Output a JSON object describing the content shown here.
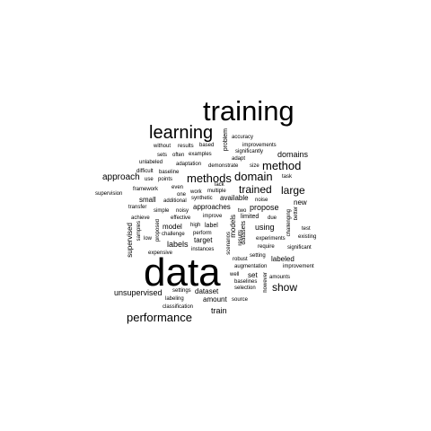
{
  "words": [
    {
      "text": "data",
      "weight": 100
    },
    {
      "text": "training",
      "weight": 70
    },
    {
      "text": "learning",
      "weight": 47
    },
    {
      "text": "performance",
      "weight": 26
    },
    {
      "text": "method",
      "weight": 28
    },
    {
      "text": "methods",
      "weight": 28
    },
    {
      "text": "domain",
      "weight": 28
    },
    {
      "text": "trained",
      "weight": 24
    },
    {
      "text": "large",
      "weight": 24
    },
    {
      "text": "show",
      "weight": 24
    },
    {
      "text": "approach",
      "weight": 20
    },
    {
      "text": "domains",
      "weight": 18
    },
    {
      "text": "propose",
      "weight": 18
    },
    {
      "text": "using",
      "weight": 18
    },
    {
      "text": "unsupervised",
      "weight": 18
    },
    {
      "text": "train",
      "weight": 18
    },
    {
      "text": "labels",
      "weight": 18
    },
    {
      "text": "small",
      "weight": 16
    },
    {
      "text": "approaches",
      "weight": 16
    },
    {
      "text": "model",
      "weight": 16
    },
    {
      "text": "target",
      "weight": 16
    },
    {
      "text": "supervised",
      "weight": 16
    },
    {
      "text": "dataset",
      "weight": 16
    },
    {
      "text": "amount",
      "weight": 16
    },
    {
      "text": "set",
      "weight": 16
    },
    {
      "text": "labeled",
      "weight": 16
    },
    {
      "text": "new",
      "weight": 16
    },
    {
      "text": "available",
      "weight": 16
    },
    {
      "text": "label",
      "weight": 14
    },
    {
      "text": "limited",
      "weight": 14
    },
    {
      "text": "models",
      "weight": 16
    },
    {
      "text": "datasets",
      "weight": 14
    },
    {
      "text": "problem",
      "weight": 14
    },
    {
      "text": "accuracy",
      "weight": 11
    },
    {
      "text": "without",
      "weight": 11
    },
    {
      "text": "results",
      "weight": 11
    },
    {
      "text": "based",
      "weight": 11
    },
    {
      "text": "improvements",
      "weight": 11
    },
    {
      "text": "sets",
      "weight": 11
    },
    {
      "text": "often",
      "weight": 11
    },
    {
      "text": "examples",
      "weight": 11
    },
    {
      "text": "adapt",
      "weight": 11
    },
    {
      "text": "significantly",
      "weight": 11
    },
    {
      "text": "unlabeled",
      "weight": 11
    },
    {
      "text": "adaptation",
      "weight": 11
    },
    {
      "text": "demonstrate",
      "weight": 11
    },
    {
      "text": "size",
      "weight": 11
    },
    {
      "text": "difficult",
      "weight": 11
    },
    {
      "text": "baseline",
      "weight": 11
    },
    {
      "text": "task",
      "weight": 11
    },
    {
      "text": "use",
      "weight": 11
    },
    {
      "text": "points",
      "weight": 11
    },
    {
      "text": "framework",
      "weight": 11
    },
    {
      "text": "even",
      "weight": 11
    },
    {
      "text": "lack",
      "weight": 11
    },
    {
      "text": "supervision",
      "weight": 11
    },
    {
      "text": "one",
      "weight": 11
    },
    {
      "text": "work",
      "weight": 11
    },
    {
      "text": "multiple",
      "weight": 11
    },
    {
      "text": "additional",
      "weight": 11
    },
    {
      "text": "synthetic",
      "weight": 11
    },
    {
      "text": "noise",
      "weight": 11
    },
    {
      "text": "transfer",
      "weight": 11
    },
    {
      "text": "simple",
      "weight": 11
    },
    {
      "text": "noisy",
      "weight": 11
    },
    {
      "text": "two",
      "weight": 11
    },
    {
      "text": "achieve",
      "weight": 11
    },
    {
      "text": "effective",
      "weight": 11
    },
    {
      "text": "improve",
      "weight": 11
    },
    {
      "text": "due",
      "weight": 11
    },
    {
      "text": "samples",
      "weight": 11
    },
    {
      "text": "low",
      "weight": 11
    },
    {
      "text": "high",
      "weight": 11
    },
    {
      "text": "challenge",
      "weight": 11
    },
    {
      "text": "perform",
      "weight": 11
    },
    {
      "text": "test",
      "weight": 11
    },
    {
      "text": "existing",
      "weight": 11
    },
    {
      "text": "experiments",
      "weight": 11
    },
    {
      "text": "expensive",
      "weight": 11
    },
    {
      "text": "instances",
      "weight": 11
    },
    {
      "text": "results",
      "weight": 11
    },
    {
      "text": "require",
      "weight": 11
    },
    {
      "text": "significant",
      "weight": 11
    },
    {
      "text": "setting",
      "weight": 11
    },
    {
      "text": "robust",
      "weight": 11
    },
    {
      "text": "augmentation",
      "weight": 11
    },
    {
      "text": "improvement",
      "weight": 11
    },
    {
      "text": "well",
      "weight": 11
    },
    {
      "text": "baselines",
      "weight": 11
    },
    {
      "text": "amounts",
      "weight": 11
    },
    {
      "text": "selection",
      "weight": 11
    },
    {
      "text": "however",
      "weight": 11
    },
    {
      "text": "settings",
      "weight": 11
    },
    {
      "text": "labeling",
      "weight": 11
    },
    {
      "text": "source",
      "weight": 11
    },
    {
      "text": "classification",
      "weight": 11
    },
    {
      "text": "challenging",
      "weight": 11
    },
    {
      "text": "better",
      "weight": 11
    },
    {
      "text": "proposed",
      "weight": 11
    },
    {
      "text": "scenarios",
      "weight": 11
    }
  ]
}
